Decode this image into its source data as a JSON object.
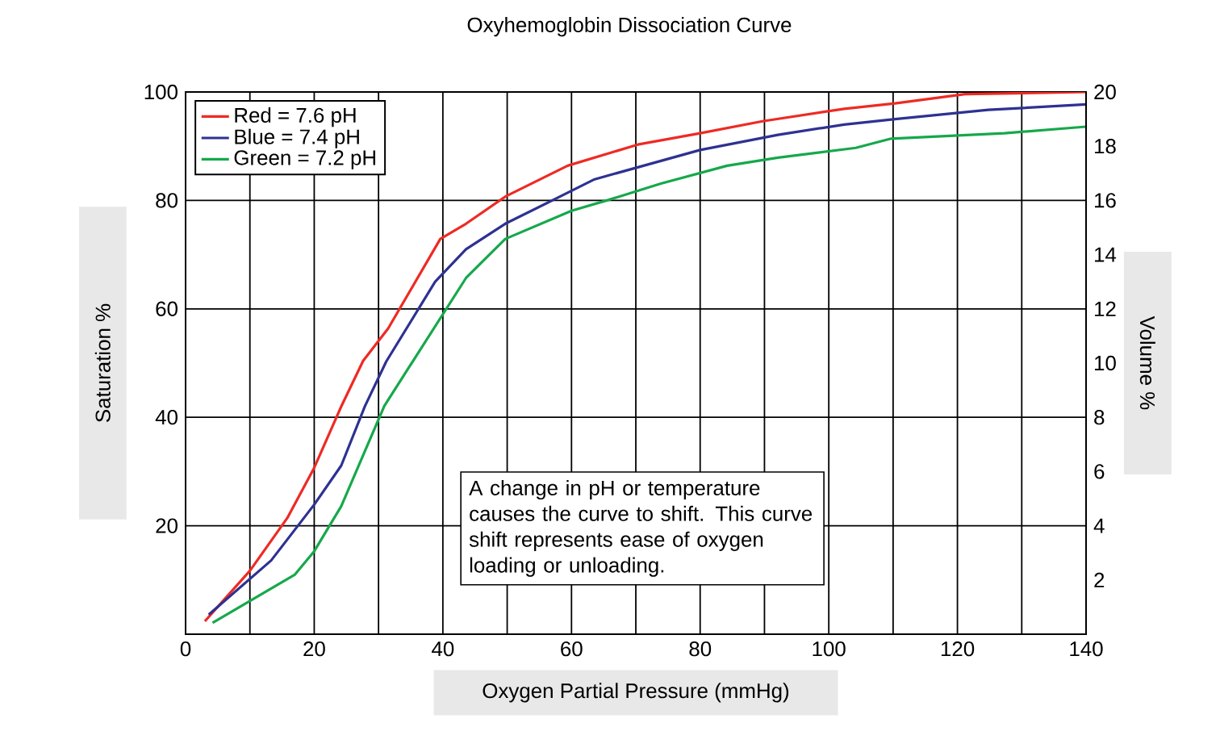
{
  "chart_data": {
    "type": "line",
    "title": "Oxyhemoglobin Dissociation Curve",
    "xlabel": "Oxygen Partial Pressure (mmHg)",
    "ylabel": "Saturation %",
    "y2label": "Volume %",
    "xlim": [
      0,
      140
    ],
    "xticks": [
      0,
      20,
      40,
      60,
      80,
      100,
      120,
      140
    ],
    "ylim": [
      0,
      100
    ],
    "yticks": [
      20,
      40,
      60,
      80,
      100
    ],
    "y2lim": [
      0,
      20
    ],
    "y2ticks": [
      2,
      4,
      6,
      8,
      10,
      12,
      14,
      16,
      18,
      20
    ],
    "grid": true,
    "legend": "top left",
    "marker": "none",
    "line_style": "solid",
    "annotations": [
      "A change in pH or temperature causes the curve to shift. This curve shift represents ease of oxygen loading or unloading."
    ],
    "series": [
      {
        "name": "Red = 7.6 pH",
        "color": "#ee2a24",
        "x": [
          3,
          10,
          15.8,
          20,
          24.2,
          27.6,
          31.5,
          39.6,
          43.6,
          49.7,
          59.4,
          70.3,
          80,
          89.7,
          102.4,
          110.3,
          121.2,
          140
        ],
        "values": [
          2.4,
          11.7,
          21.4,
          30.7,
          42,
          50.4,
          56.4,
          72.9,
          75.7,
          80.7,
          86.4,
          90.3,
          92.4,
          94.6,
          96.9,
          97.9,
          99.6,
          100
        ]
      },
      {
        "name": "Blue = 7.4 pH",
        "color": "#2e3192",
        "x": [
          3.6,
          13.3,
          20,
          24.2,
          27.9,
          31.2,
          38.8,
          43.6,
          49.7,
          58.2,
          63.6,
          80,
          92.1,
          102.4,
          110.3,
          124.8,
          140
        ],
        "values": [
          3.6,
          13.6,
          23.9,
          31.1,
          42.1,
          50.3,
          65,
          71,
          75.7,
          80.7,
          83.9,
          89.3,
          92.1,
          94,
          95,
          96.7,
          97.7
        ]
      },
      {
        "name": "Green = 7.2 pH",
        "color": "#16a84b",
        "x": [
          4.2,
          17,
          20,
          24.2,
          30.9,
          43.6,
          49.7,
          60,
          65.5,
          73.9,
          84.2,
          92.1,
          104.2,
          109.7,
          127.3,
          140
        ],
        "values": [
          2.1,
          11,
          15.3,
          23.6,
          42.1,
          65.7,
          72.9,
          78.1,
          80,
          83.1,
          86.4,
          87.9,
          89.7,
          91.4,
          92.4,
          93.6
        ]
      }
    ]
  }
}
